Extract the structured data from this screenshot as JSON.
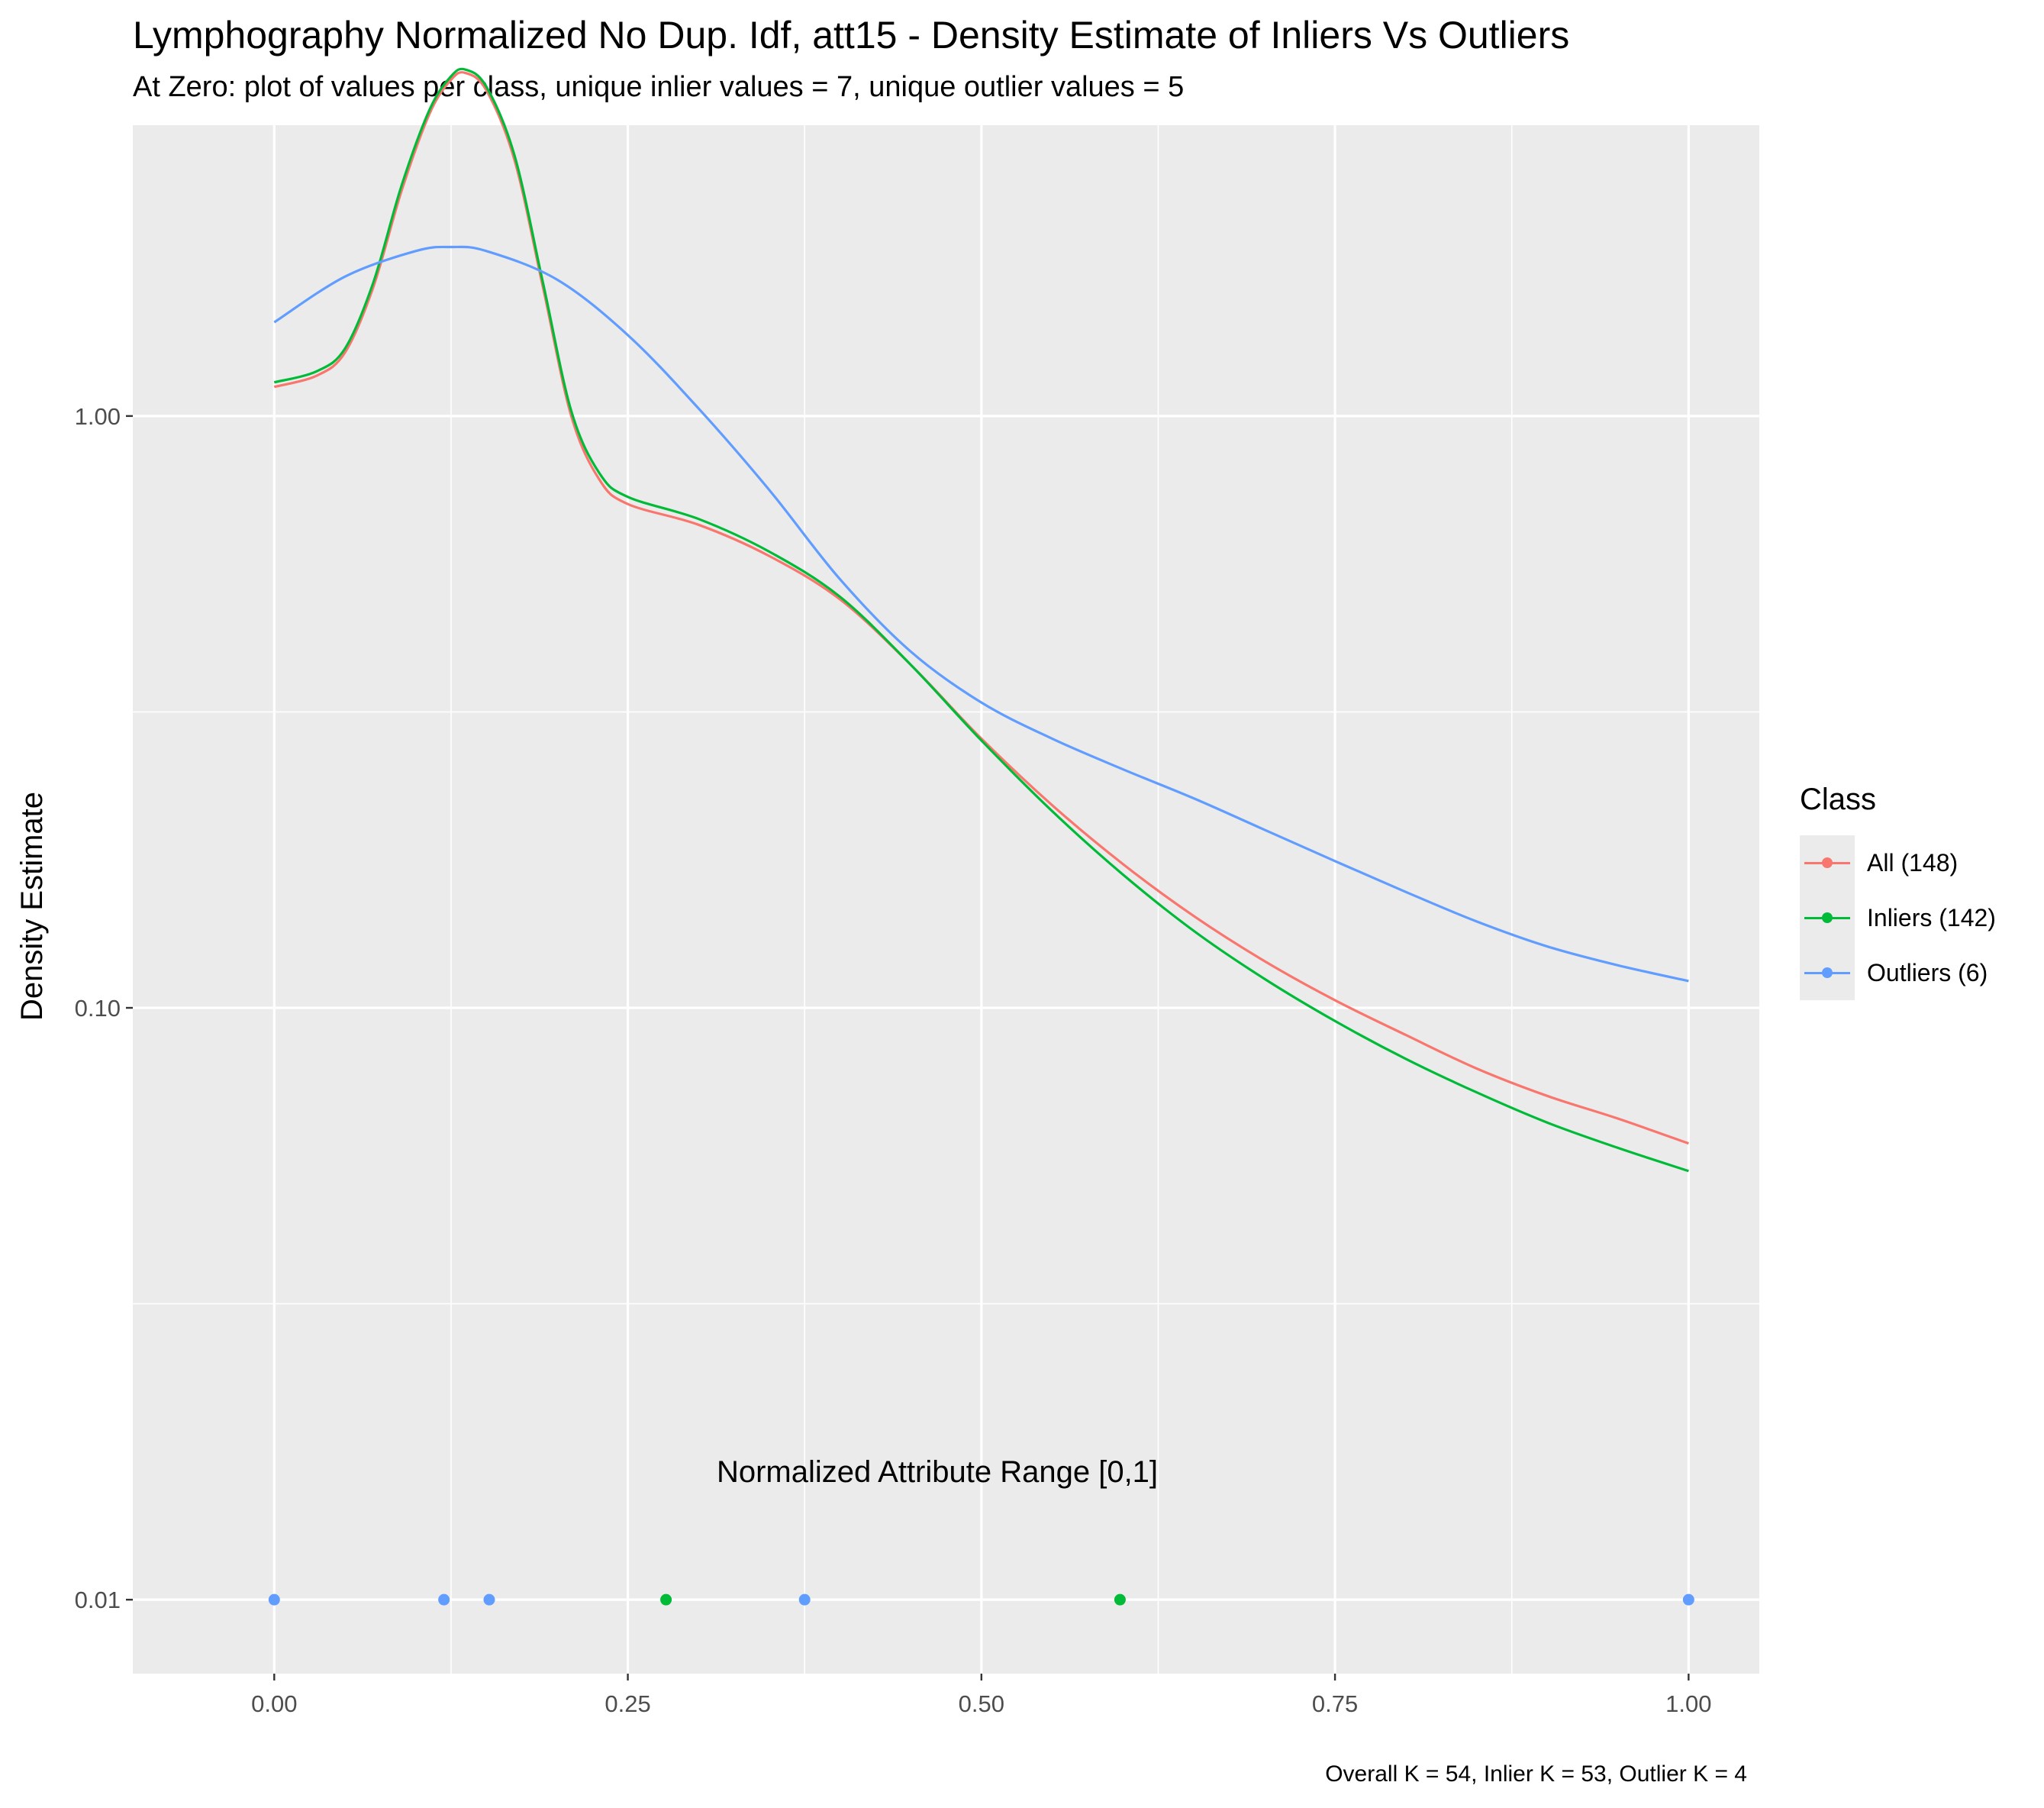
{
  "title": "Lymphography Normalized No Dup. Idf, att15 - Density Estimate of Inliers Vs Outliers",
  "subtitle": "At Zero: plot of values per class, unique inlier values = 7, unique outlier values = 5",
  "caption": "Overall K = 54, Inlier K = 53, Outlier K = 4",
  "chart_data": {
    "type": "line",
    "xlabel": "Normalized Attribute Range [0,1]",
    "ylabel": "Density Estimate",
    "y_scale": "log10",
    "xlim": [
      -0.1,
      1.05
    ],
    "ylim": [
      0.0075,
      3.1
    ],
    "x_ticks": [
      {
        "value": 0,
        "label": "0.00"
      },
      {
        "value": 0.25,
        "label": "0.25"
      },
      {
        "value": 0.5,
        "label": "0.50"
      },
      {
        "value": 0.75,
        "label": "0.75"
      },
      {
        "value": 1,
        "label": "1.00"
      }
    ],
    "y_ticks": [
      {
        "value": 0.01,
        "label": "0.01"
      },
      {
        "value": 0.1,
        "label": "0.10"
      },
      {
        "value": 1,
        "label": "1.00"
      }
    ],
    "grid": true,
    "legend": {
      "title": "Class",
      "placement": "right"
    },
    "series": [
      {
        "name": "All (148)",
        "color": "#F8766D",
        "x": [
          0,
          0.03,
          0.05,
          0.07,
          0.09,
          0.11,
          0.125,
          0.135,
          0.15,
          0.17,
          0.19,
          0.21,
          0.23,
          0.25,
          0.3,
          0.35,
          0.4,
          0.45,
          0.5,
          0.55,
          0.6,
          0.65,
          0.7,
          0.75,
          0.8,
          0.85,
          0.9,
          0.95,
          1.0
        ],
        "y": [
          1.12,
          1.17,
          1.28,
          1.65,
          2.4,
          3.25,
          3.7,
          3.8,
          3.55,
          2.7,
          1.65,
          1.0,
          0.78,
          0.71,
          0.655,
          0.58,
          0.49,
          0.38,
          0.285,
          0.22,
          0.175,
          0.143,
          0.12,
          0.103,
          0.09,
          0.079,
          0.071,
          0.065,
          0.059
        ]
      },
      {
        "name": "Inliers (142)",
        "color": "#00BA38",
        "x": [
          0,
          0.03,
          0.05,
          0.07,
          0.09,
          0.11,
          0.125,
          0.135,
          0.15,
          0.17,
          0.19,
          0.21,
          0.23,
          0.25,
          0.3,
          0.35,
          0.4,
          0.45,
          0.5,
          0.55,
          0.6,
          0.65,
          0.7,
          0.75,
          0.8,
          0.85,
          0.9,
          0.95,
          1.0
        ],
        "y": [
          1.14,
          1.19,
          1.3,
          1.68,
          2.45,
          3.3,
          3.75,
          3.85,
          3.6,
          2.75,
          1.68,
          1.02,
          0.8,
          0.73,
          0.67,
          0.59,
          0.495,
          0.38,
          0.283,
          0.215,
          0.168,
          0.135,
          0.112,
          0.095,
          0.082,
          0.072,
          0.064,
          0.058,
          0.053
        ]
      },
      {
        "name": "Outliers (6)",
        "color": "#619CFF",
        "x": [
          0,
          0.05,
          0.1,
          0.125,
          0.15,
          0.2,
          0.25,
          0.3,
          0.35,
          0.4,
          0.45,
          0.5,
          0.55,
          0.6,
          0.65,
          0.7,
          0.75,
          0.8,
          0.85,
          0.9,
          0.95,
          1.0
        ],
        "y": [
          1.44,
          1.72,
          1.9,
          1.93,
          1.9,
          1.7,
          1.37,
          1.03,
          0.75,
          0.53,
          0.4,
          0.328,
          0.285,
          0.253,
          0.226,
          0.2,
          0.177,
          0.157,
          0.14,
          0.127,
          0.118,
          0.111
        ]
      }
    ],
    "points_at_y": 0.01,
    "points": [
      {
        "class": "Outliers (6)",
        "x": 0.0,
        "color": "#619CFF"
      },
      {
        "class": "Outliers (6)",
        "x": 0.12,
        "color": "#619CFF"
      },
      {
        "class": "Outliers (6)",
        "x": 0.152,
        "color": "#619CFF"
      },
      {
        "class": "Inliers (142)",
        "x": 0.277,
        "color": "#00BA38"
      },
      {
        "class": "Outliers (6)",
        "x": 0.375,
        "color": "#619CFF"
      },
      {
        "class": "Inliers (142)",
        "x": 0.598,
        "color": "#00BA38"
      },
      {
        "class": "Outliers (6)",
        "x": 1.0,
        "color": "#619CFF"
      }
    ]
  },
  "legend_items": [
    {
      "label": "All (148)",
      "color": "#F8766D"
    },
    {
      "label": "Inliers (142)",
      "color": "#00BA38"
    },
    {
      "label": "Outliers (6)",
      "color": "#619CFF"
    }
  ]
}
